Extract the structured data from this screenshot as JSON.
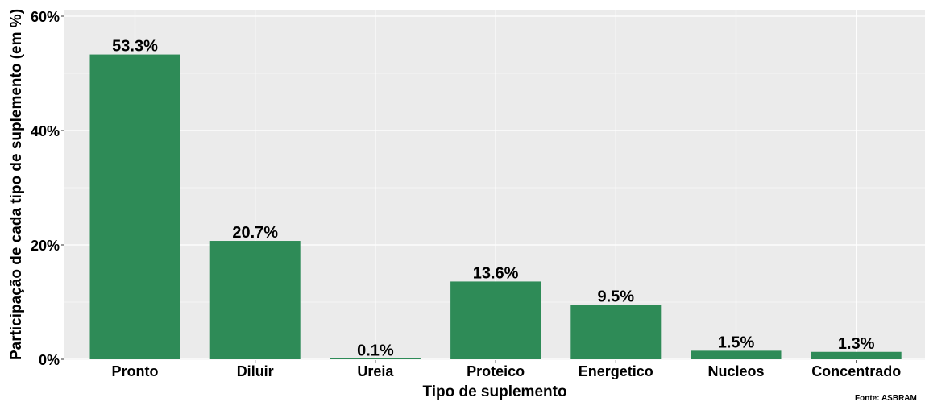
{
  "chart_data": {
    "type": "bar",
    "categories": [
      "Pronto",
      "Diluir",
      "Ureia",
      "Proteico",
      "Energetico",
      "Nucleos",
      "Concentrado"
    ],
    "values": [
      53.3,
      20.7,
      0.1,
      13.6,
      9.5,
      1.5,
      1.3
    ],
    "value_labels": [
      "53.3%",
      "20.7%",
      "0.1%",
      "13.6%",
      "9.5%",
      "1.5%",
      "1.3%"
    ],
    "xlabel": "Tipo de suplemento",
    "ylabel": "Participação de cada tipo de suplemento (em %)",
    "ylim": [
      0,
      60
    ],
    "yticks": [
      0,
      20,
      40,
      60
    ],
    "ytick_labels": [
      "0%",
      "20%",
      "40%",
      "60%"
    ],
    "caption": "Fonte: ASBRAM",
    "grid": true,
    "colors": {
      "bar": "#2e8b57",
      "panel": "#ebebeb",
      "grid": "#ffffff"
    }
  }
}
